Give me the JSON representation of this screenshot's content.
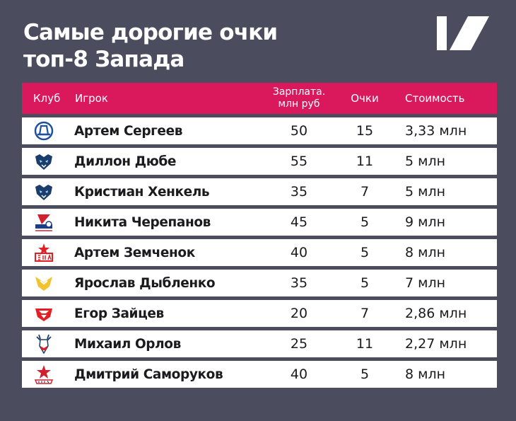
{
  "title": {
    "line1": "Самые дорогие очки",
    "line2": "топ-8 Запада"
  },
  "brand_logo_icon": "brand-slash-logo-icon",
  "table": {
    "headers": {
      "club": "Клуб",
      "player": "Игрок",
      "salary_line1": "Зарплата.",
      "salary_line2": "млн руб",
      "points": "Очки",
      "cost": "Стоимость"
    },
    "rows": [
      {
        "club_icon": "dynamo-logo-icon",
        "player": "Артем Сергеев",
        "salary": "50",
        "points": "15",
        "cost": "3,33 млн"
      },
      {
        "club_icon": "bars-logo-icon",
        "player": "Диллон Дюбе",
        "salary": "55",
        "points": "11",
        "cost": "5 млн"
      },
      {
        "club_icon": "bars-logo-icon",
        "player": "Кристиан Хенкель",
        "salary": "35",
        "points": "7",
        "cost": "5 млн"
      },
      {
        "club_icon": "lokomotiv-logo-icon",
        "player": "Никита Черепанов",
        "salary": "45",
        "points": "5",
        "cost": "9 млн"
      },
      {
        "club_icon": "ska-logo-icon",
        "player": "Артем Земченок",
        "salary": "40",
        "points": "5",
        "cost": "8 млн"
      },
      {
        "club_icon": "severstal-logo-icon",
        "player": "Ярослав Дыбленко",
        "salary": "35",
        "points": "5",
        "cost": "7 млн"
      },
      {
        "club_icon": "spartak-logo-icon",
        "player": "Егор Зайцев",
        "salary": "20",
        "points": "7",
        "cost": "2,86 млн"
      },
      {
        "club_icon": "vityaz-logo-icon",
        "player": "Михаил Орлов",
        "salary": "25",
        "points": "11",
        "cost": "2,27 млн"
      },
      {
        "club_icon": "cska-logo-icon",
        "player": "Дмитрий Саморуков",
        "salary": "40",
        "points": "5",
        "cost": "8 млн"
      }
    ]
  }
}
